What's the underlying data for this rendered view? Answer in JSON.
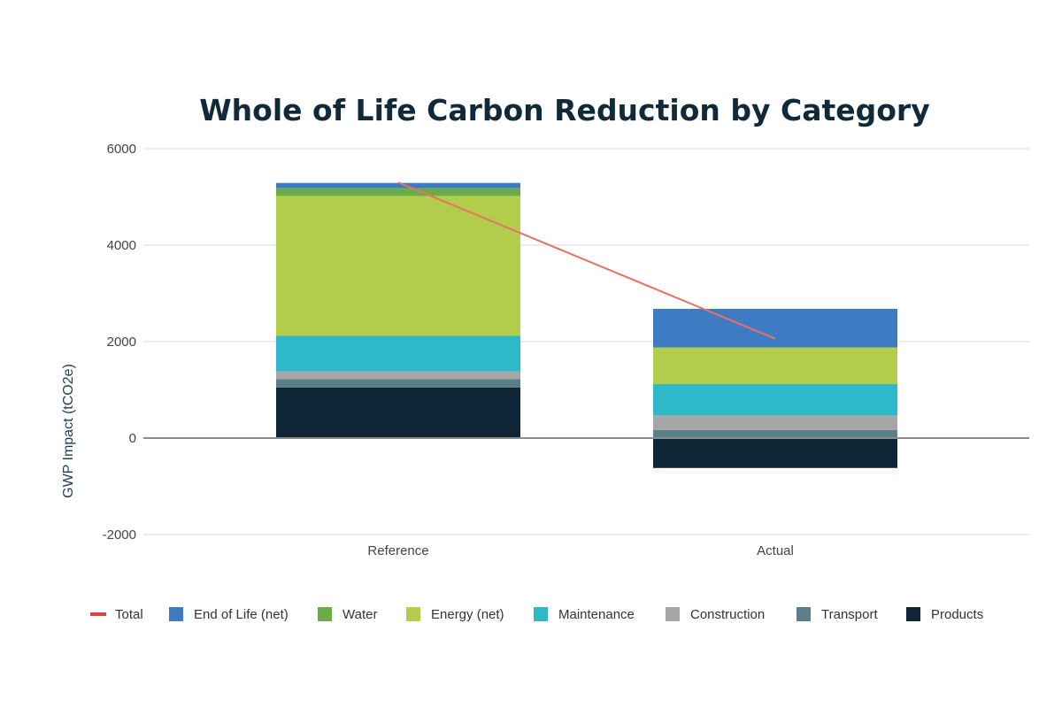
{
  "chart_data": {
    "type": "bar",
    "stacked": true,
    "title": "Whole of Life Carbon Reduction by Category",
    "ylabel": "GWP Impact (tCO2e)",
    "xlabel": "",
    "ylim": [
      -2000,
      6000
    ],
    "yticks": [
      6000,
      4000,
      2000,
      0,
      -2000
    ],
    "grid": true,
    "legend_position": "bottom",
    "categories": [
      "Reference",
      "Actual"
    ],
    "series": [
      {
        "name": "Products",
        "color": "#0d2535",
        "values": [
          1050,
          -620
        ]
      },
      {
        "name": "Transport",
        "color": "#5a7f86",
        "values": [
          170,
          170
        ]
      },
      {
        "name": "Construction",
        "color": "#a6a6a6",
        "values": [
          160,
          300
        ]
      },
      {
        "name": "Maintenance",
        "color": "#2fb8c8",
        "values": [
          740,
          650
        ]
      },
      {
        "name": "Energy (net)",
        "color": "#b2cd4c",
        "values": [
          2900,
          760
        ]
      },
      {
        "name": "Water",
        "color": "#6aac47",
        "values": [
          160,
          0
        ]
      },
      {
        "name": "End of Life (net)",
        "color": "#3f7bc2",
        "values": [
          110,
          800
        ]
      }
    ],
    "line_series": {
      "name": "Total",
      "color": "#e87262",
      "values": [
        5300,
        2060
      ]
    },
    "legend_order": [
      "Total",
      "End of Life (net)",
      "Water",
      "Energy (net)",
      "Maintenance",
      "Construction",
      "Transport",
      "Products"
    ]
  }
}
